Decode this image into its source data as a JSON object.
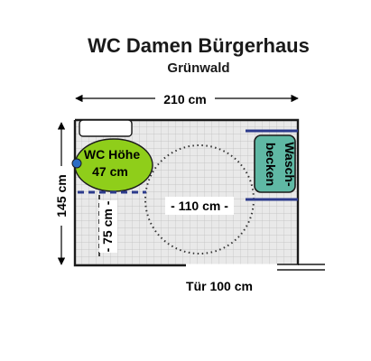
{
  "header": {
    "title": "WC Damen Bürgerhaus",
    "subtitle": "Grünwald"
  },
  "dimensions": {
    "width_label": "210 cm",
    "height_label": "145 cm",
    "turning_circle_label": "- 110 cm -",
    "side_clearance_label": "- 75 cm -",
    "door_label": "Tür 100 cm"
  },
  "fixtures": {
    "wc_line1": "WC Höhe",
    "wc_line2": "47 cm",
    "sink_line1": "Wasch-",
    "sink_line2": "becken"
  },
  "colors": {
    "wc_fill": "#8fce1a",
    "sink_fill": "#5fb8a4",
    "handle": "#2b6cc4",
    "grab_bar": "#2c3a8c",
    "floor_tile": "#e9e9e9",
    "grid_line": "#bdbdbd",
    "wall": "#1a1a1a"
  }
}
